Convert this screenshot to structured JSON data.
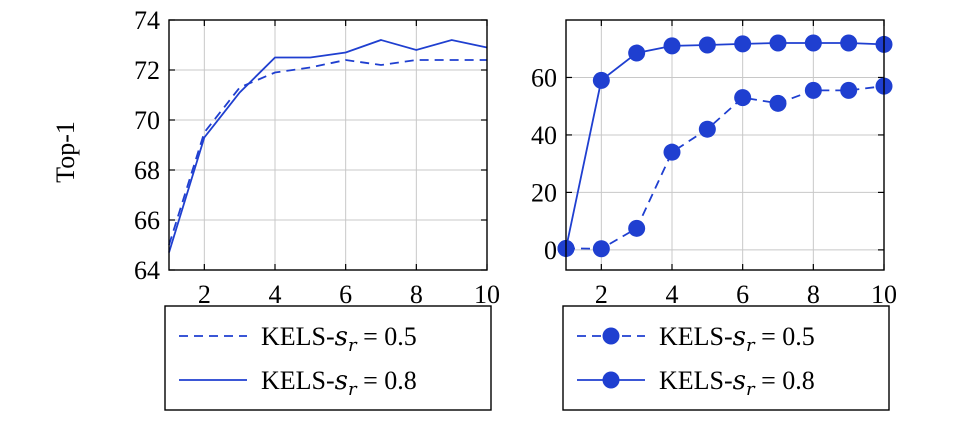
{
  "chart_data": [
    {
      "type": "line",
      "title": "",
      "xlabel": "",
      "ylabel": "Top-1",
      "xlim": [
        1,
        10
      ],
      "ylim": [
        64,
        74
      ],
      "xticks": [
        2,
        4,
        6,
        8,
        10
      ],
      "yticks": [
        64,
        66,
        68,
        70,
        72,
        74
      ],
      "grid": true,
      "legend": "below",
      "series": [
        {
          "name": "KELS-sr = 0.5",
          "legend_prefix": "KELS-",
          "legend_var": "s",
          "legend_sub": "r",
          "legend_rest": " = 0.5",
          "style": "dashed",
          "marker": "none",
          "color": "#1f3fd0",
          "x": [
            1,
            2,
            3,
            4,
            5,
            6,
            7,
            8,
            9,
            10
          ],
          "values": [
            65.0,
            69.5,
            71.3,
            71.9,
            72.1,
            72.4,
            72.2,
            72.4,
            72.4,
            72.4
          ]
        },
        {
          "name": "KELS-sr = 0.8",
          "legend_prefix": "KELS-",
          "legend_var": "s",
          "legend_sub": "r",
          "legend_rest": " = 0.8",
          "style": "solid",
          "marker": "none",
          "color": "#1f3fd0",
          "x": [
            1,
            2,
            3,
            4,
            5,
            6,
            7,
            8,
            9,
            10
          ],
          "values": [
            64.7,
            69.3,
            71.1,
            72.5,
            72.5,
            72.7,
            73.2,
            72.8,
            73.2,
            72.9
          ]
        }
      ]
    },
    {
      "type": "line",
      "title": "",
      "xlabel": "",
      "ylabel": "",
      "xlim": [
        1,
        10
      ],
      "ylim": [
        -7,
        80
      ],
      "xticks": [
        2,
        4,
        6,
        8,
        10
      ],
      "yticks": [
        0,
        20,
        40,
        60
      ],
      "grid": true,
      "legend": "below",
      "series": [
        {
          "name": "KELS-sr = 0.5",
          "legend_prefix": "KELS-",
          "legend_var": "s",
          "legend_sub": "r",
          "legend_rest": " = 0.5",
          "style": "dashed",
          "marker": "circle",
          "color": "#1f3fd0",
          "x": [
            1,
            2,
            3,
            4,
            5,
            6,
            7,
            8,
            9,
            10
          ],
          "values": [
            0.5,
            0.4,
            7.5,
            34.0,
            42.0,
            53.0,
            51.0,
            55.5,
            55.5,
            57.0
          ]
        },
        {
          "name": "KELS-sr = 0.8",
          "legend_prefix": "KELS-",
          "legend_var": "s",
          "legend_sub": "r",
          "legend_rest": " = 0.8",
          "style": "solid",
          "marker": "circle",
          "color": "#1f3fd0",
          "x": [
            1,
            2,
            3,
            4,
            5,
            6,
            7,
            8,
            9,
            10
          ],
          "values": [
            0.5,
            59.0,
            68.5,
            71.0,
            71.3,
            71.7,
            72.0,
            72.0,
            72.0,
            71.5
          ]
        }
      ]
    }
  ]
}
